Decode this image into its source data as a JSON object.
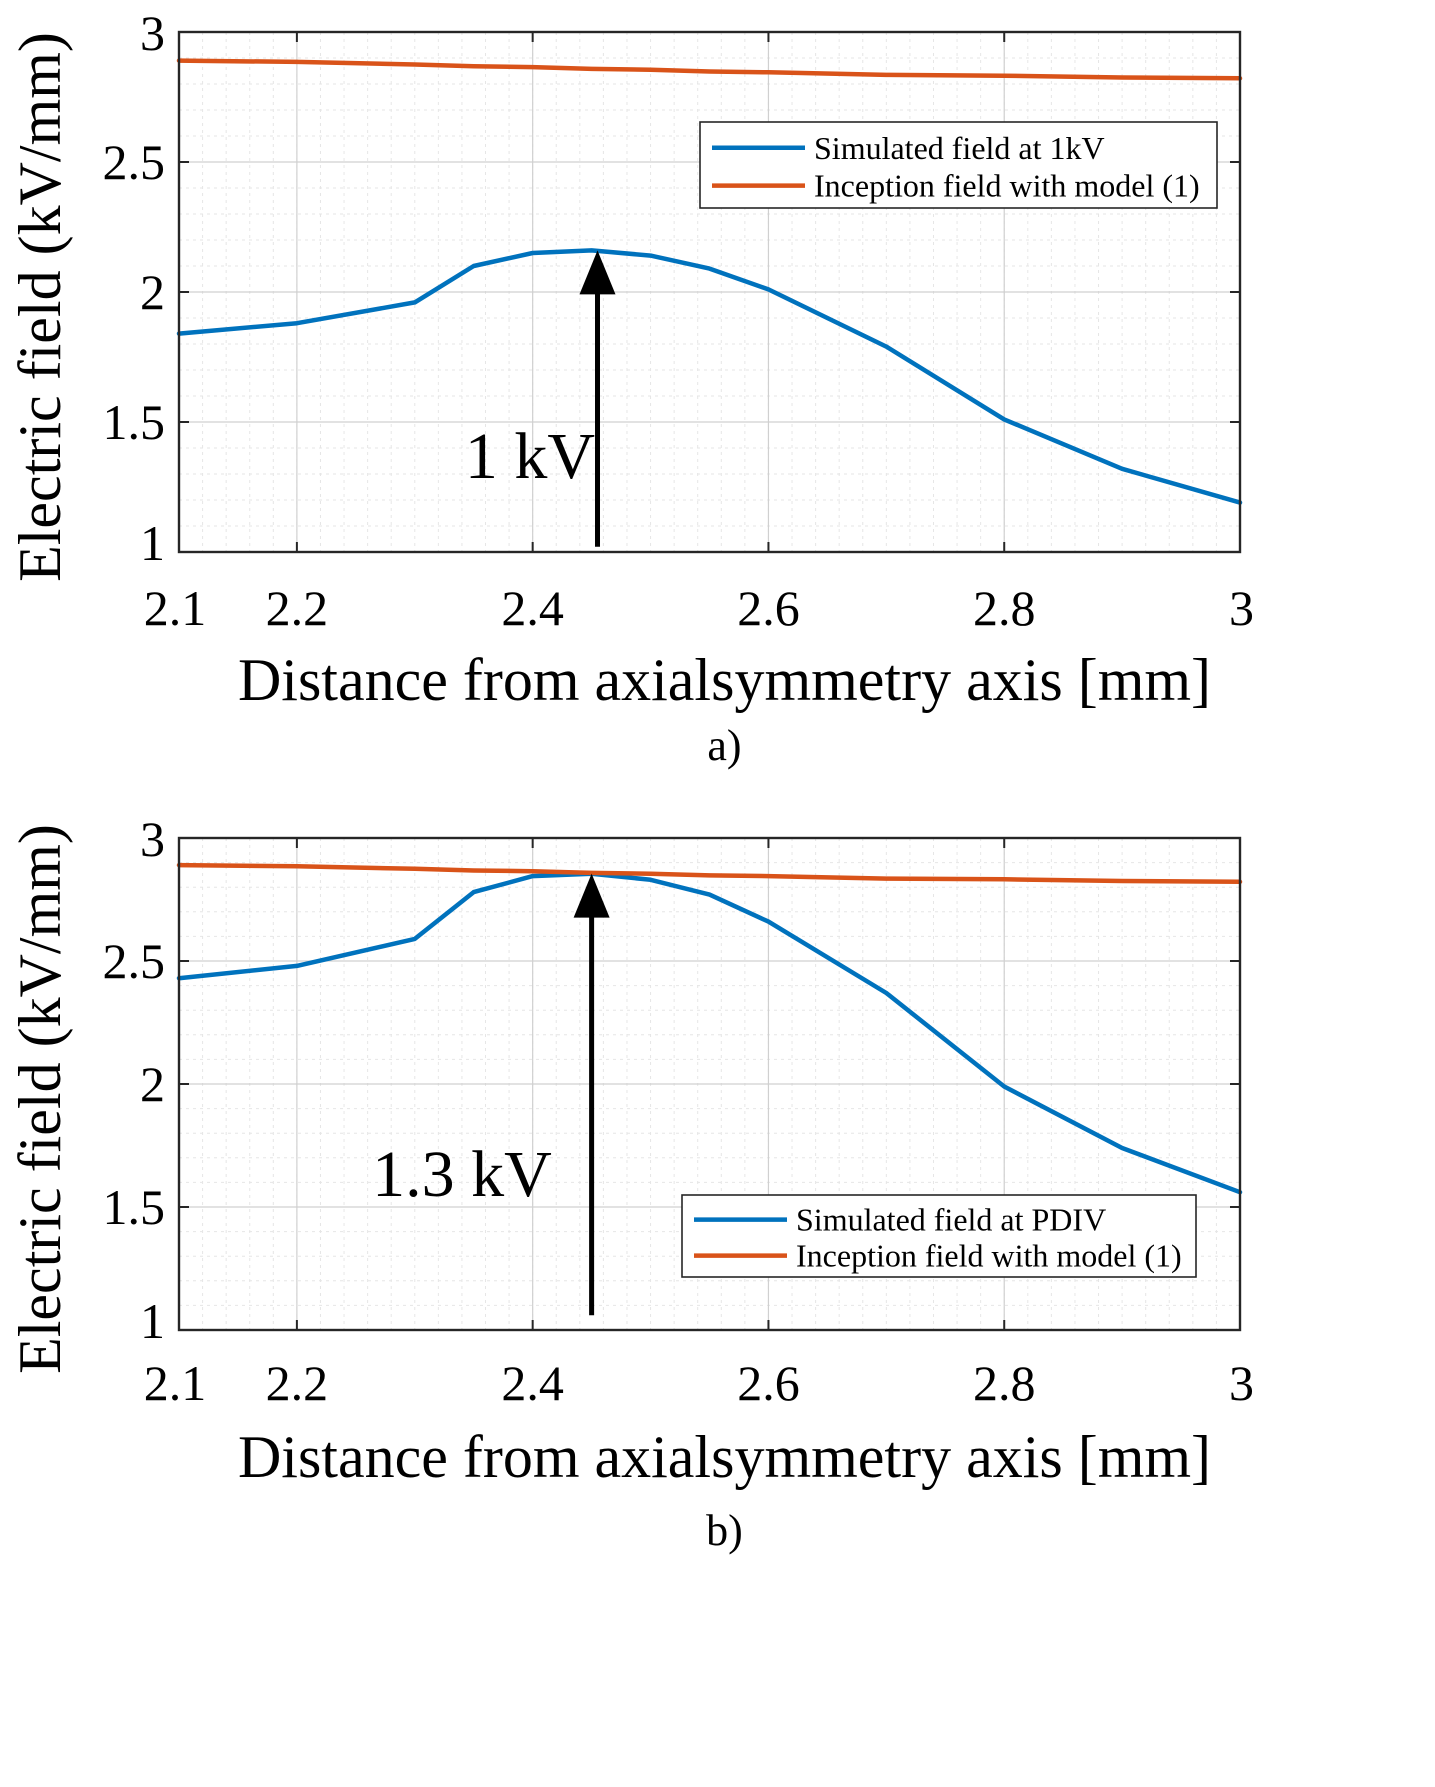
{
  "chart_data": [
    {
      "type": "line",
      "panel_label": "a)",
      "xlabel": "Distance from axialsymmetry axis [mm]",
      "ylabel": "Electric field (kV/mm)",
      "xlim": [
        2.1,
        3.0
      ],
      "ylim": [
        1.0,
        3.0
      ],
      "xticks": [
        2.1,
        2.2,
        2.4,
        2.6,
        2.8,
        3.0
      ],
      "xtick_labels": [
        "2.1",
        "2.2",
        "2.4",
        "2.6",
        "2.8",
        "3"
      ],
      "yticks": [
        1.0,
        1.5,
        2.0,
        2.5,
        3.0
      ],
      "ytick_labels": [
        "1",
        "1.5",
        "2",
        "2.5",
        "3"
      ],
      "grid": true,
      "legend_position": "top-right",
      "series": [
        {
          "name": "Simulated field at 1kV",
          "color": "#0072BD",
          "x": [
            2.1,
            2.2,
            2.3,
            2.35,
            2.4,
            2.45,
            2.5,
            2.55,
            2.6,
            2.7,
            2.8,
            2.9,
            3.0
          ],
          "y": [
            1.84,
            1.88,
            1.96,
            2.1,
            2.15,
            2.16,
            2.14,
            2.09,
            2.01,
            1.79,
            1.51,
            1.32,
            1.19
          ]
        },
        {
          "name": "Inception field with model (1)",
          "color": "#D95319",
          "x": [
            2.1,
            2.2,
            2.3,
            2.35,
            2.4,
            2.45,
            2.5,
            2.55,
            2.6,
            2.7,
            2.8,
            2.9,
            3.0
          ],
          "y": [
            2.89,
            2.885,
            2.875,
            2.868,
            2.865,
            2.858,
            2.855,
            2.848,
            2.845,
            2.835,
            2.832,
            2.825,
            2.822
          ]
        }
      ],
      "annotation": {
        "text": "1 kV",
        "arrow_x": 2.455,
        "arrow_y_from": 1.02,
        "arrow_y_to": 2.16
      }
    },
    {
      "type": "line",
      "panel_label": "b)",
      "xlabel": "Distance from axialsymmetry axis [mm]",
      "ylabel": "Electric field (kV/mm)",
      "xlim": [
        2.1,
        3.0
      ],
      "ylim": [
        1.0,
        3.0
      ],
      "xticks": [
        2.1,
        2.2,
        2.4,
        2.6,
        2.8,
        3.0
      ],
      "xtick_labels": [
        "2.1",
        "2.2",
        "2.4",
        "2.6",
        "2.8",
        "3"
      ],
      "yticks": [
        1.0,
        1.5,
        2.0,
        2.5,
        3.0
      ],
      "ytick_labels": [
        "1",
        "1.5",
        "2",
        "2.5",
        "3"
      ],
      "grid": true,
      "legend_position": "bottom-right",
      "series": [
        {
          "name": "Simulated field at PDIV",
          "color": "#0072BD",
          "x": [
            2.1,
            2.2,
            2.3,
            2.35,
            2.4,
            2.45,
            2.5,
            2.55,
            2.6,
            2.7,
            2.8,
            2.9,
            3.0
          ],
          "y": [
            2.43,
            2.48,
            2.59,
            2.78,
            2.845,
            2.855,
            2.83,
            2.77,
            2.66,
            2.37,
            1.99,
            1.74,
            1.56
          ]
        },
        {
          "name": "Inception field with model (1)",
          "color": "#D95319",
          "x": [
            2.1,
            2.2,
            2.3,
            2.35,
            2.4,
            2.45,
            2.5,
            2.55,
            2.6,
            2.7,
            2.8,
            2.9,
            3.0
          ],
          "y": [
            2.89,
            2.885,
            2.875,
            2.868,
            2.865,
            2.858,
            2.855,
            2.848,
            2.845,
            2.835,
            2.832,
            2.825,
            2.822
          ]
        }
      ],
      "annotation": {
        "text": "1.3 kV",
        "arrow_x": 2.45,
        "arrow_y_from": 1.06,
        "arrow_y_to": 2.855
      }
    }
  ]
}
